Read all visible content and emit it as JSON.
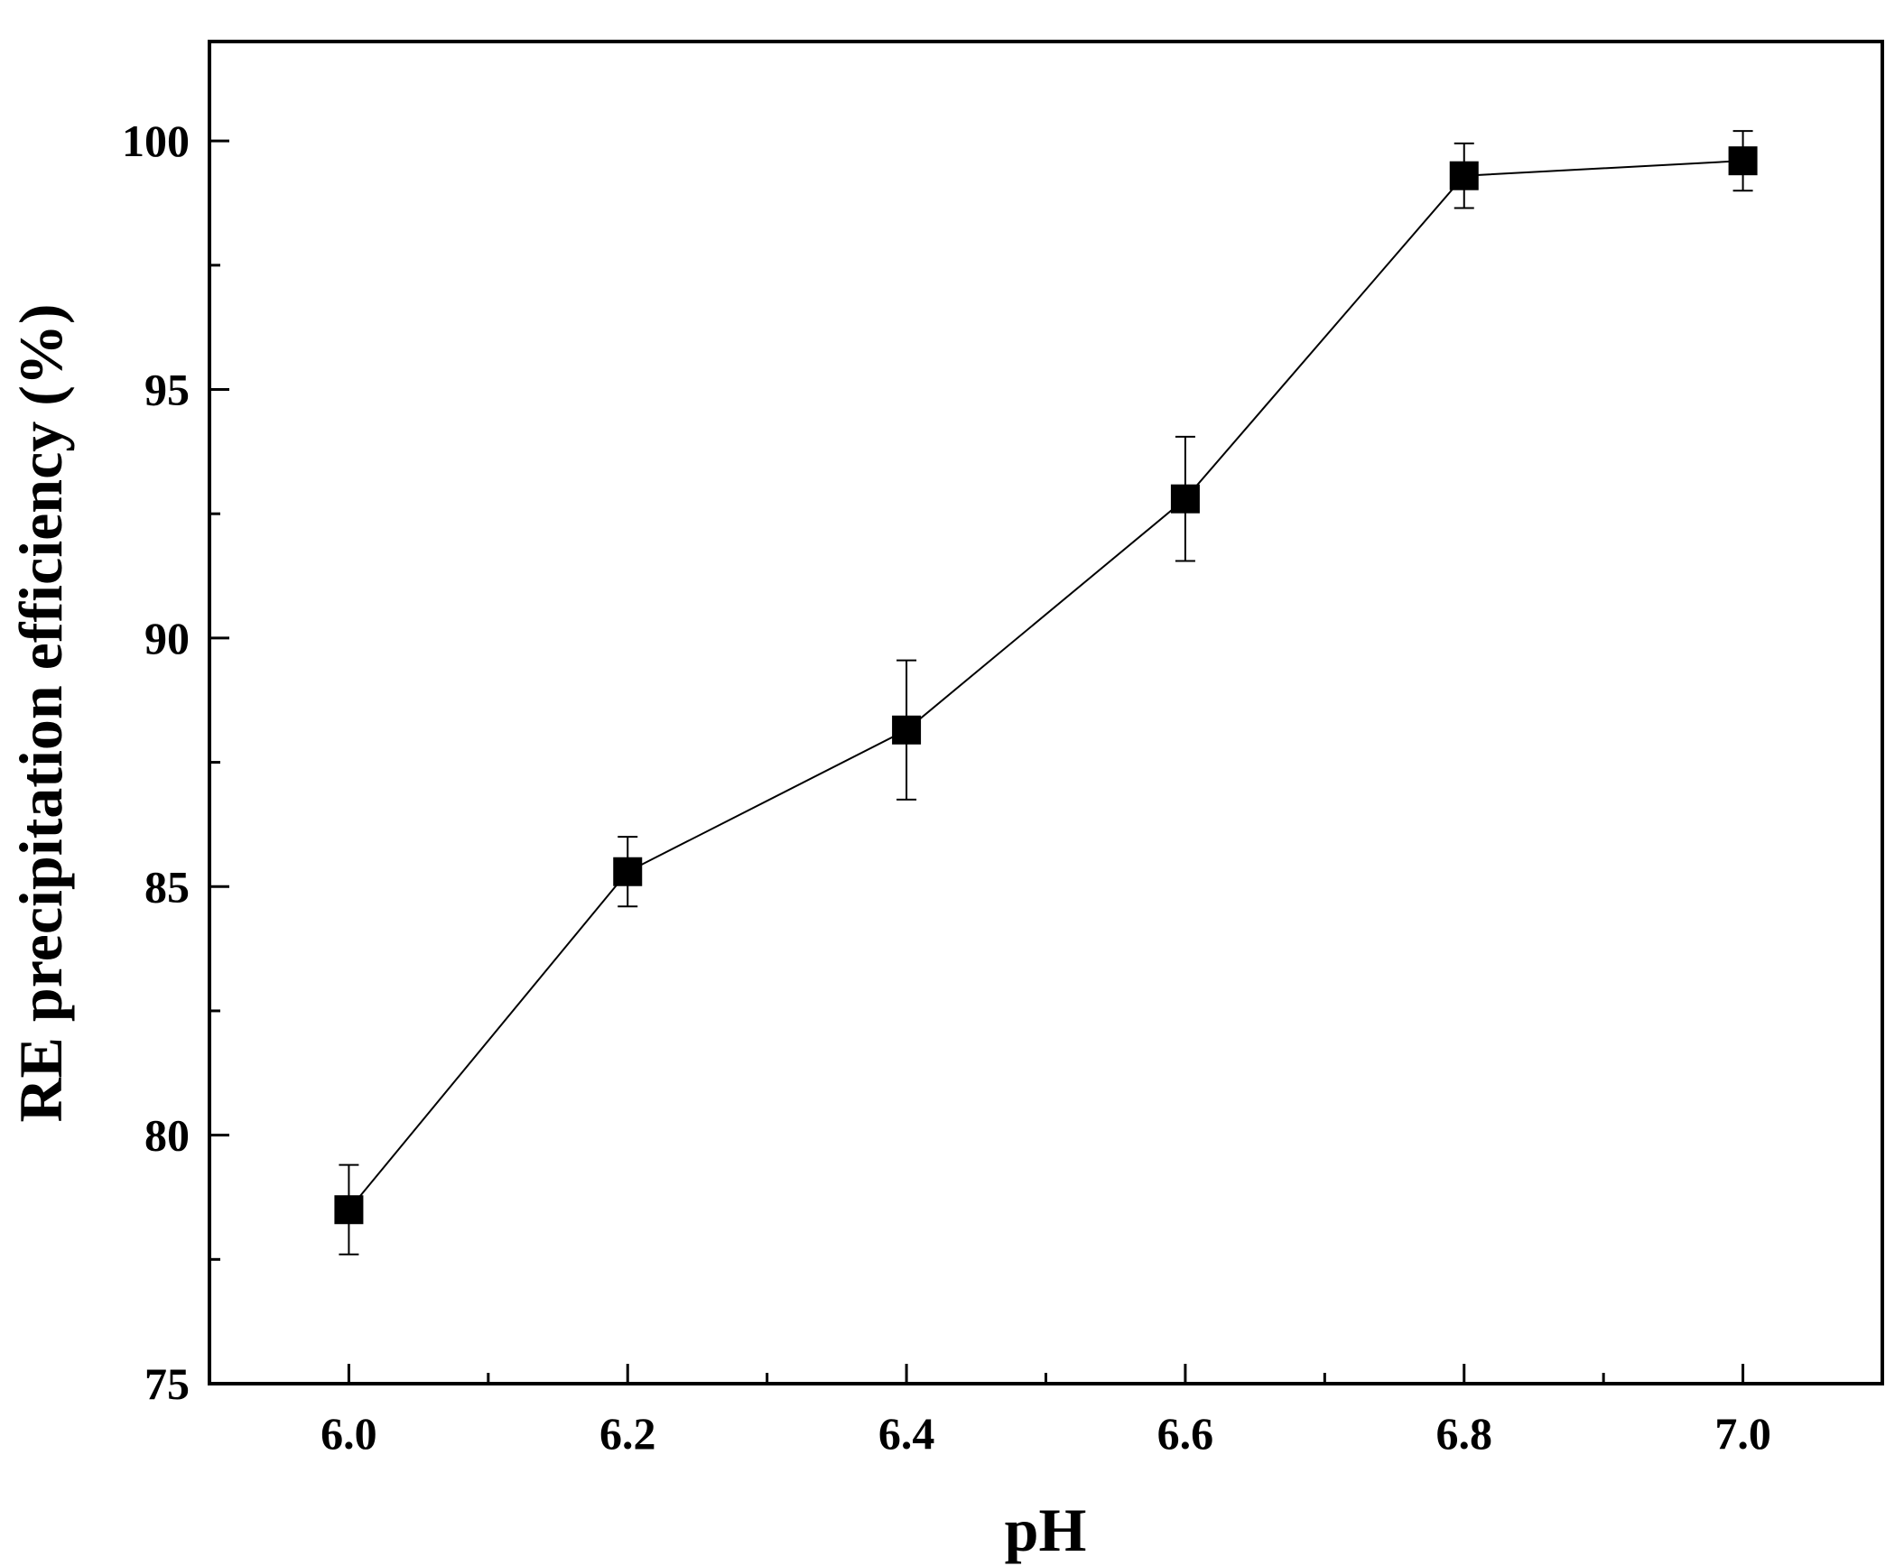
{
  "chart_data": {
    "type": "scatter",
    "xlabel": "pH",
    "ylabel": "RE precipitation efficiency (%)",
    "xlim": [
      5.9,
      7.1
    ],
    "ylim": [
      75,
      102
    ],
    "x_ticks": [
      "6.0",
      "6.2",
      "6.4",
      "6.6",
      "6.8",
      "7.0"
    ],
    "x_tick_values": [
      6.0,
      6.2,
      6.4,
      6.6,
      6.8,
      7.0
    ],
    "x_minor_ticks": [
      6.1,
      6.3,
      6.5,
      6.7,
      6.9
    ],
    "y_ticks": [
      "75",
      "80",
      "85",
      "90",
      "95",
      "100"
    ],
    "y_tick_values": [
      75,
      80,
      85,
      90,
      95,
      100
    ],
    "y_minor_ticks": [
      77.5,
      82.5,
      87.5,
      92.5,
      97.5
    ],
    "grid": false,
    "series": [
      {
        "marker": "square",
        "connected": true,
        "color": "#000000",
        "x": [
          6.0,
          6.2,
          6.4,
          6.6,
          6.8,
          7.0
        ],
        "y": [
          78.5,
          85.3,
          88.15,
          92.8,
          99.3,
          99.6
        ],
        "error": [
          0.9,
          0.7,
          1.4,
          1.25,
          0.65,
          0.6
        ]
      }
    ]
  }
}
